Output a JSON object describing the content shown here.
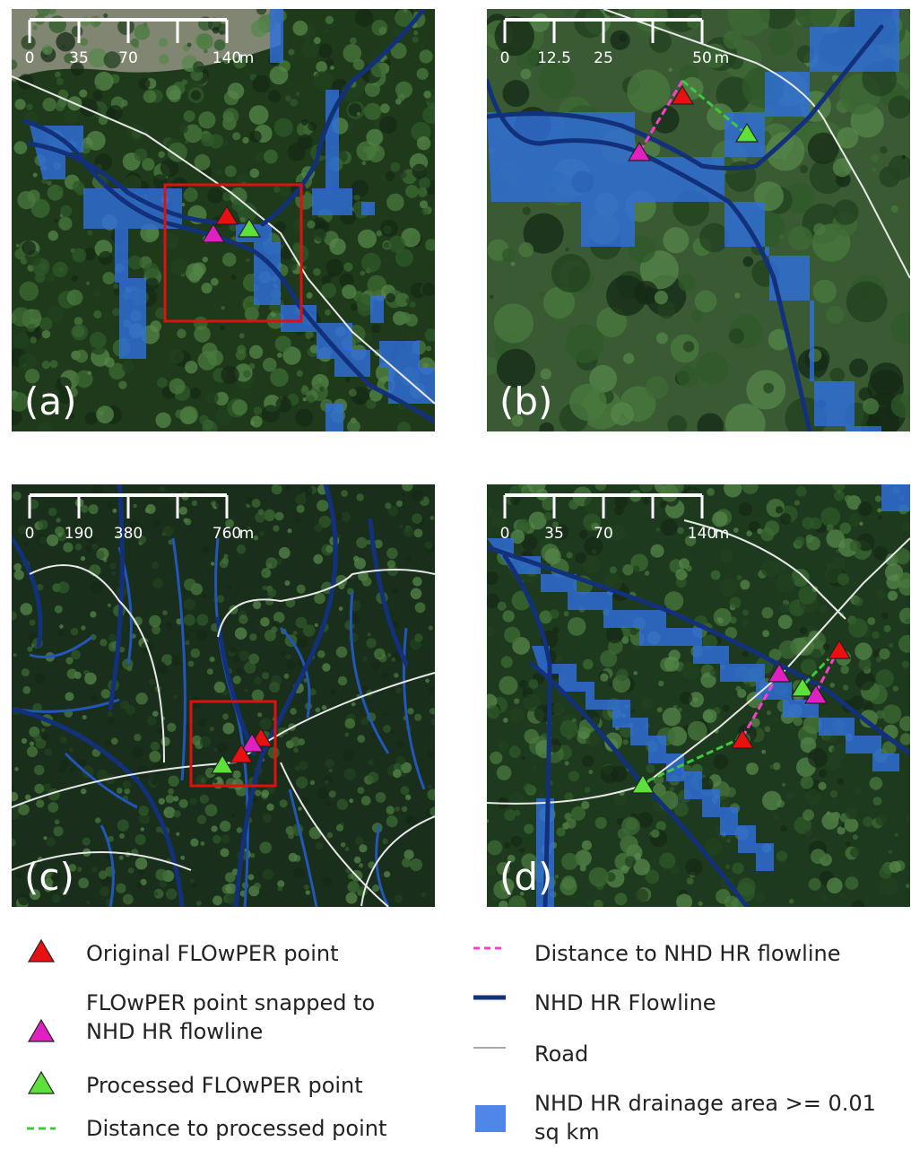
{
  "panels": [
    {
      "label": "(a)",
      "scale": {
        "ticks": [
          "0",
          "35",
          "70",
          "140"
        ],
        "unit": "m"
      }
    },
    {
      "label": "(b)",
      "scale": {
        "ticks": [
          "0",
          "12.5",
          "25",
          "50"
        ],
        "unit": "m"
      }
    },
    {
      "label": "(c)",
      "scale": {
        "ticks": [
          "0",
          "190",
          "380",
          "760"
        ],
        "unit": "m"
      }
    },
    {
      "label": "(d)",
      "scale": {
        "ticks": [
          "0",
          "35",
          "70",
          "140"
        ],
        "unit": "m"
      }
    }
  ],
  "legend": [
    {
      "label": "Original FLOwPER point"
    },
    {
      "label": "FLOwPER point snapped to NHD HR flowline"
    },
    {
      "label": "Processed FLOwPER point"
    },
    {
      "label": "Distance to processed point"
    },
    {
      "label": "Distance to NHD HR flowline"
    },
    {
      "label": "NHD HR Flowline"
    },
    {
      "label": "Road"
    },
    {
      "label": "NHD HR drainage area >= 0.01 sq km"
    }
  ]
}
